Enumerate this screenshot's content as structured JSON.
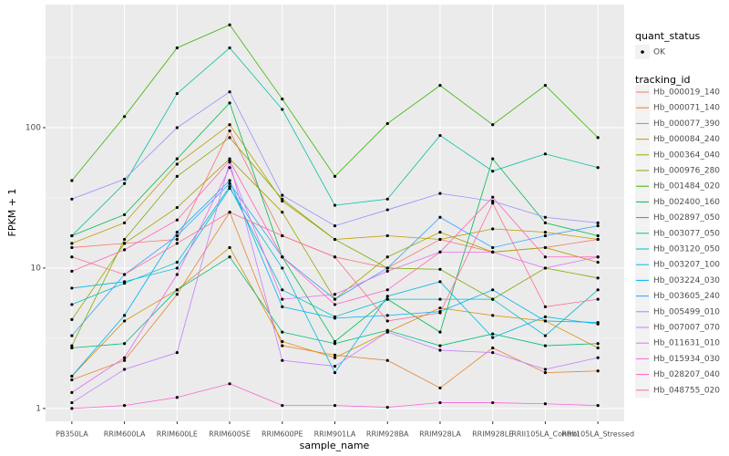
{
  "chart_data": {
    "type": "line",
    "log_y": true,
    "grid": true,
    "xlabel": "sample_name",
    "ylabel": "FPKM + 1",
    "point_legend_title": "quant_status",
    "point_legend_labels": [
      "OK"
    ],
    "legend_title": "tracking_id",
    "categories": [
      "PB350LA",
      "RRIM600LA",
      "RRIM600LE",
      "RRIM600SE",
      "RRIM600PE",
      "RRIM901LA",
      "RRIM928BA",
      "RRIM928LA",
      "RRIM928LE",
      "RRII105LA_Control",
      "RRII105LA_Stressed"
    ],
    "ylim": [
      0.81,
      753
    ],
    "yticks": [
      1,
      10,
      100
    ],
    "series": [
      {
        "name": "Hb_000019_140",
        "color": "#F8766D",
        "values": [
          14,
          15,
          16,
          95,
          17,
          12,
          10,
          16,
          13,
          14,
          16
        ]
      },
      {
        "name": "Hb_000071_140",
        "color": "#EA8331",
        "values": [
          1.6,
          2.2,
          6.5,
          25,
          2.8,
          2.4,
          2.2,
          1.4,
          2.7,
          1.8,
          1.85
        ]
      },
      {
        "name": "Hb_000077_390",
        "color": "#D89000",
        "values": [
          1.7,
          4.2,
          7,
          14,
          3,
          2.3,
          3.5,
          5.2,
          4.6,
          4.2,
          2.7
        ]
      },
      {
        "name": "Hb_000084_240",
        "color": "#C09B00",
        "values": [
          15,
          21,
          55,
          105,
          30,
          16,
          17,
          16,
          19,
          18,
          16
        ]
      },
      {
        "name": "Hb_000364_040",
        "color": "#A3A500",
        "values": [
          4.3,
          15,
          27,
          60,
          25,
          6,
          12,
          18,
          13,
          14,
          11
        ]
      },
      {
        "name": "Hb_000976_280",
        "color": "#7CAE00",
        "values": [
          2.8,
          16,
          45,
          85,
          31,
          16,
          10,
          9.8,
          6,
          10,
          8.5
        ]
      },
      {
        "name": "Hb_001484_020",
        "color": "#39B600",
        "values": [
          42,
          120,
          370,
          540,
          160,
          45,
          107,
          200,
          105,
          200,
          85
        ]
      },
      {
        "name": "Hb_002400_160",
        "color": "#00BB4E",
        "values": [
          17,
          24,
          60,
          150,
          12,
          3,
          6,
          3.5,
          60,
          21,
          17
        ]
      },
      {
        "name": "Hb_002897_050",
        "color": "#00BF7D",
        "values": [
          2.7,
          2.9,
          7,
          12,
          3.5,
          2.9,
          3.6,
          2.8,
          3.4,
          2.8,
          2.9
        ]
      },
      {
        "name": "Hb_003077_050",
        "color": "#00C1A3",
        "values": [
          17,
          40,
          175,
          370,
          135,
          28,
          31,
          88,
          49,
          65,
          52
        ]
      },
      {
        "name": "Hb_003120_050",
        "color": "#00BFC4",
        "values": [
          5.5,
          7.8,
          11,
          38,
          7,
          4.5,
          6,
          6,
          6,
          3.3,
          7
        ]
      },
      {
        "name": "Hb_003207_100",
        "color": "#00BAE0",
        "values": [
          7.2,
          8,
          10,
          37,
          10,
          1.8,
          6.3,
          8,
          3.2,
          4.5,
          4
        ]
      },
      {
        "name": "Hb_003224_030",
        "color": "#00B0F6",
        "values": [
          1.7,
          4.6,
          18,
          42,
          5.3,
          4.4,
          4.6,
          4.9,
          7,
          4.2,
          4.1
        ]
      },
      {
        "name": "Hb_003605_240",
        "color": "#35A2FF",
        "values": [
          3.3,
          9,
          17,
          40,
          12,
          6,
          10,
          23,
          14,
          17,
          20
        ]
      },
      {
        "name": "Hb_005499_010",
        "color": "#9590FF",
        "values": [
          31,
          43,
          100,
          180,
          33,
          20,
          26,
          34,
          30,
          23,
          21
        ]
      },
      {
        "name": "Hb_007007_070",
        "color": "#C77CFF",
        "values": [
          1.1,
          1.9,
          2.5,
          57,
          2.2,
          2,
          3.5,
          2.6,
          2.5,
          1.9,
          2.3
        ]
      },
      {
        "name": "Hb_011631_010",
        "color": "#E76BF3",
        "values": [
          1.3,
          2.3,
          9,
          52,
          6,
          6.5,
          9.5,
          13,
          13,
          10,
          12
        ]
      },
      {
        "name": "Hb_015934_030",
        "color": "#FA62DB",
        "values": [
          1.0,
          1.05,
          1.2,
          1.5,
          1.05,
          1.05,
          1.02,
          1.1,
          1.1,
          1.08,
          1.05
        ]
      },
      {
        "name": "Hb_028207_040",
        "color": "#FF62BC",
        "values": [
          9.5,
          13.5,
          22,
          58,
          12,
          5.5,
          7,
          13,
          32,
          12,
          12
        ]
      },
      {
        "name": "Hb_048755_020",
        "color": "#FF6C91",
        "values": [
          12,
          9,
          15,
          25,
          17,
          12,
          4.2,
          4.8,
          29,
          5.3,
          6
        ]
      }
    ]
  }
}
